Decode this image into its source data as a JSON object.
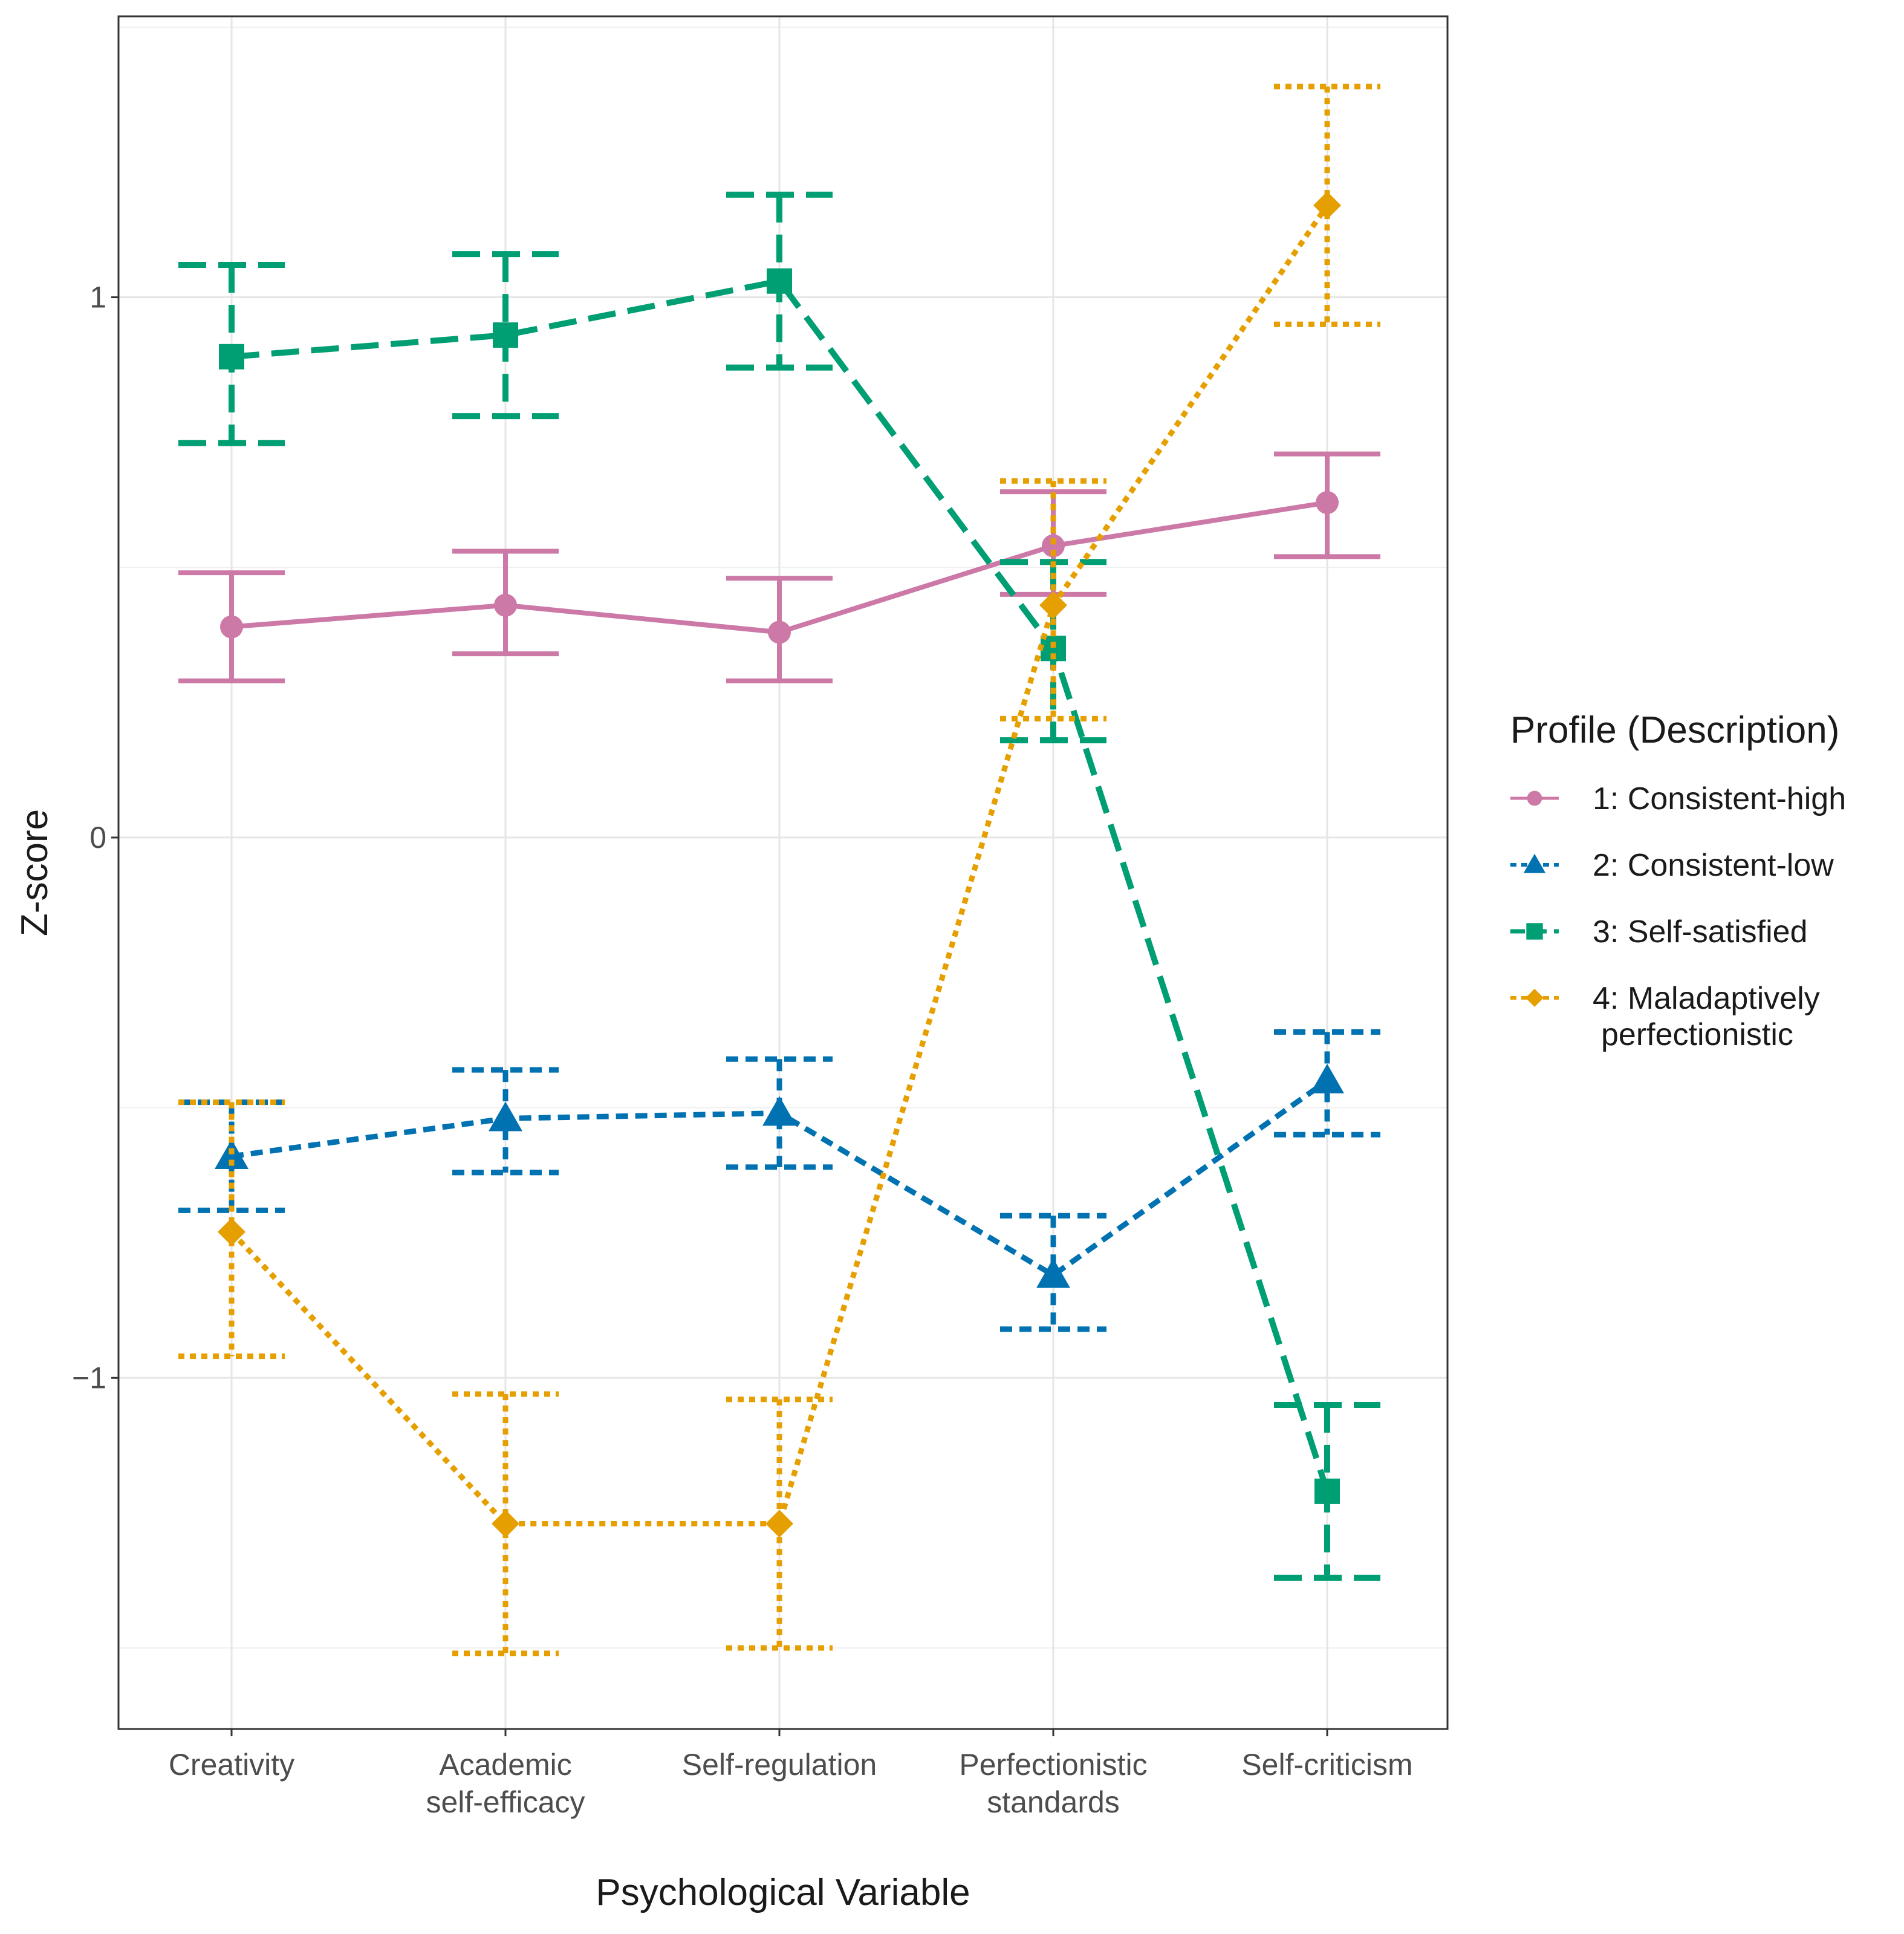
{
  "chart_data": {
    "type": "line",
    "title": "",
    "xlabel": "Psychological Variable",
    "ylabel": "Z-score",
    "categories": [
      [
        "Creativity"
      ],
      [
        "Academic",
        "self-efficacy"
      ],
      [
        "Self-regulation"
      ],
      [
        "Perfectionistic",
        "standards"
      ],
      [
        "Self-criticism"
      ]
    ],
    "ylim": [
      -1.65,
      1.52
    ],
    "yticks": [
      1,
      0,
      -1
    ],
    "ytick_labels": [
      "1",
      "0",
      "−1"
    ],
    "grid": true,
    "legend": {
      "title": "Profile (Description)",
      "placement": "right"
    },
    "series": [
      {
        "name": "1: Consistent-high",
        "label_lines": [
          "1: Consistent-high"
        ],
        "color": "#CC79A7",
        "linestyle": "solid",
        "marker": "circle",
        "values": [
          0.39,
          0.43,
          0.38,
          0.54,
          0.62
        ],
        "lower": [
          0.29,
          0.34,
          0.29,
          0.45,
          0.52
        ],
        "upper": [
          0.49,
          0.53,
          0.48,
          0.64,
          0.71
        ]
      },
      {
        "name": "2: Consistent-low",
        "label_lines": [
          "2: Consistent-low"
        ],
        "color": "#0072B2",
        "linestyle": "dotted",
        "marker": "triangle",
        "values": [
          -0.59,
          -0.52,
          -0.51,
          -0.81,
          -0.45
        ],
        "lower": [
          -0.69,
          -0.62,
          -0.61,
          -0.91,
          -0.55
        ],
        "upper": [
          -0.49,
          -0.43,
          -0.41,
          -0.7,
          -0.36
        ]
      },
      {
        "name": "3: Self-satisfied",
        "label_lines": [
          "3: Self-satisfied"
        ],
        "color": "#009E73",
        "linestyle": "dashed",
        "marker": "square",
        "values": [
          0.89,
          0.93,
          1.03,
          0.35,
          -1.21
        ],
        "lower": [
          0.73,
          0.78,
          0.87,
          0.18,
          -1.37
        ],
        "upper": [
          1.06,
          1.08,
          1.19,
          0.51,
          -1.05
        ]
      },
      {
        "name": "4: Maladaptively perfectionistic",
        "label_lines": [
          "4: Maladaptively",
          "perfectionistic"
        ],
        "color": "#E69F00",
        "linestyle": "dotted-fine",
        "marker": "diamond",
        "values": [
          -0.73,
          -1.27,
          -1.27,
          0.43,
          1.17
        ],
        "lower": [
          -0.96,
          -1.51,
          -1.5,
          0.22,
          0.95
        ],
        "upper": [
          -0.49,
          -1.03,
          -1.04,
          0.66,
          1.39
        ]
      }
    ]
  }
}
